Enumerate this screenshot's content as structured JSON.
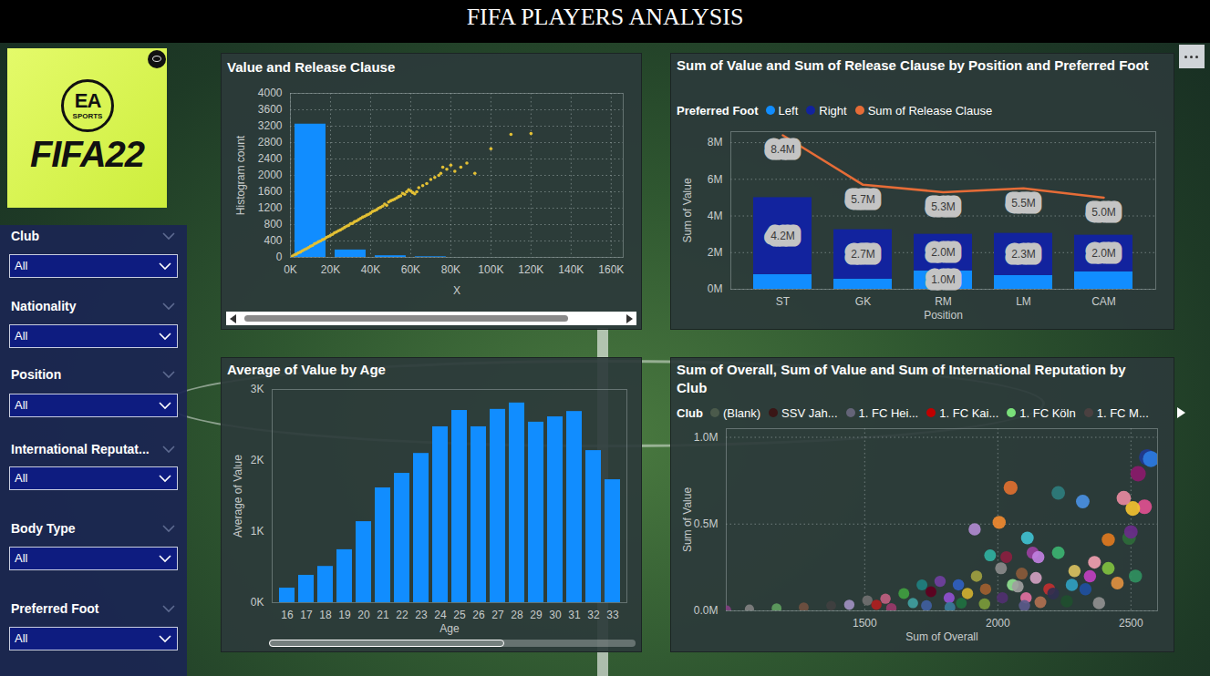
{
  "dashboard": {
    "title": "FIFA PLAYERS ANALYSIS",
    "logo": {
      "badge": "EA",
      "badge_sub": "SPORTS",
      "game": "FIFA22"
    },
    "slicers": [
      {
        "label": "Club",
        "value": "All"
      },
      {
        "label": "Nationality",
        "value": "All"
      },
      {
        "label": "Position",
        "value": "All"
      },
      {
        "label": "International Reputat...",
        "value": "All"
      },
      {
        "label": "Body Type",
        "value": "All"
      },
      {
        "label": "Preferred Foot",
        "value": "All"
      }
    ]
  },
  "chart_data": [
    {
      "type": "combo",
      "title": "Value and Release Clause",
      "x_label": "X",
      "y_label": "Histogram count",
      "xlim": [
        0,
        166000
      ],
      "xticks": [
        {
          "value": 0,
          "label": "0K"
        },
        {
          "value": 20000,
          "label": "20K"
        },
        {
          "value": 40000,
          "label": "40K"
        },
        {
          "value": 60000,
          "label": "60K"
        },
        {
          "value": 80000,
          "label": "80K"
        },
        {
          "value": 100000,
          "label": "100K"
        },
        {
          "value": 120000,
          "label": "120K"
        },
        {
          "value": 140000,
          "label": "140K"
        },
        {
          "value": 160000,
          "label": "160K"
        }
      ],
      "ylim": [
        0,
        4000
      ],
      "yticks": [
        0,
        400,
        800,
        1200,
        1600,
        2000,
        2400,
        2800,
        3200,
        3600,
        4000
      ],
      "grid": true,
      "series": [
        {
          "type": "bar",
          "color": "#118dff",
          "bins": [
            0,
            20000,
            40000,
            60000,
            80000
          ],
          "values": [
            3250,
            180,
            40,
            15
          ]
        },
        {
          "type": "scatter",
          "color": "#e3c034",
          "marker": "circle",
          "x": [
            1000,
            2000,
            3000,
            4000,
            5000,
            6000,
            7000,
            8000,
            9000,
            10000,
            11000,
            12000,
            13000,
            14000,
            15000,
            16000,
            17000,
            18000,
            19000,
            20000,
            21000,
            22000,
            23000,
            24000,
            25000,
            26000,
            27000,
            28000,
            29000,
            30000,
            31000,
            32000,
            33000,
            34000,
            35000,
            36000,
            37000,
            38000,
            39000,
            40000,
            41000,
            42000,
            43000,
            44000,
            45000,
            46000,
            47000,
            48000,
            49000,
            50000,
            51000,
            52000,
            53000,
            54000,
            55000,
            56000,
            57000,
            58000,
            59000,
            60000,
            61000,
            62000,
            63000,
            64000,
            66000,
            68000,
            70000,
            72000,
            74000,
            75000,
            76000,
            78000,
            80000,
            82000,
            85000,
            88000,
            92000,
            100000,
            110000,
            120000
          ],
          "values": [
            30,
            60,
            80,
            110,
            130,
            160,
            190,
            210,
            240,
            270,
            290,
            330,
            350,
            380,
            400,
            430,
            450,
            490,
            510,
            540,
            560,
            600,
            620,
            650,
            670,
            700,
            730,
            760,
            780,
            820,
            830,
            870,
            890,
            920,
            950,
            980,
            1000,
            1030,
            1050,
            1080,
            1120,
            1140,
            1160,
            1200,
            1220,
            1250,
            1300,
            1270,
            1350,
            1380,
            1400,
            1420,
            1450,
            1480,
            1500,
            1560,
            1540,
            1600,
            1650,
            1620,
            1580,
            1550,
            1600,
            1700,
            1750,
            1800,
            1900,
            1950,
            2000,
            2050,
            2200,
            2150,
            2250,
            2100,
            2200,
            2300,
            2050,
            2650,
            3000,
            3020
          ]
        }
      ]
    },
    {
      "type": "combo",
      "title": "Sum of Value and Sum of Release Clause by Position and Preferred Foot",
      "legend_title": "Preferred Foot",
      "legend": "top",
      "x_label": "Position",
      "y_label": "Sum of Value",
      "categories": [
        "ST",
        "GK",
        "RM",
        "LM",
        "CAM"
      ],
      "ylim": [
        0,
        8600000
      ],
      "yticks": [
        {
          "value": 0,
          "label": "0M"
        },
        {
          "value": 2000000,
          "label": "2M"
        },
        {
          "value": 4000000,
          "label": "4M"
        },
        {
          "value": 6000000,
          "label": "6M"
        },
        {
          "value": 8000000,
          "label": "8M"
        }
      ],
      "grid": true,
      "stacked": true,
      "data_labels": true,
      "series": [
        {
          "name": "Left",
          "type": "bar",
          "color": "#118dff",
          "values": [
            800000,
            550000,
            1000000,
            750000,
            950000
          ],
          "value_labels": [
            null,
            null,
            "1.0M",
            null,
            null
          ]
        },
        {
          "name": "Right",
          "type": "bar",
          "color": "#12239e",
          "values": [
            4200000,
            2700000,
            2000000,
            2300000,
            2000000
          ],
          "value_labels": [
            "4.2M",
            "2.7M",
            "2.0M",
            "2.3M",
            "2.0M"
          ]
        },
        {
          "name": "Sum of Release Clause",
          "type": "line",
          "color": "#e66c37",
          "values": [
            8400000,
            5700000,
            5300000,
            5500000,
            5000000
          ],
          "value_labels": [
            "8.4M",
            "5.7M",
            "5.3M",
            "5.5M",
            "5.0M"
          ]
        }
      ]
    },
    {
      "type": "bar",
      "title": "Average of Value by Age",
      "x_label": "Age",
      "y_label": "Average of Value",
      "categories": [
        "16",
        "17",
        "18",
        "19",
        "20",
        "21",
        "22",
        "23",
        "24",
        "25",
        "26",
        "27",
        "28",
        "29",
        "30",
        "31",
        "32",
        "33"
      ],
      "values": [
        205,
        385,
        510,
        745,
        1140,
        1615,
        1820,
        2100,
        2475,
        2705,
        2475,
        2720,
        2810,
        2540,
        2615,
        2690,
        2140,
        1730
      ],
      "color": "#118dff",
      "ylim": [
        0,
        3000
      ],
      "yticks": [
        {
          "value": 0,
          "label": "0K"
        },
        {
          "value": 1000,
          "label": "1K"
        },
        {
          "value": 2000,
          "label": "2K"
        },
        {
          "value": 3000,
          "label": "3K"
        }
      ],
      "grid": false
    },
    {
      "type": "scatter",
      "title": "Sum of Overall, Sum of Value and Sum of International Reputation by Club",
      "legend_title": "Club",
      "legend": "top",
      "legend_entries": [
        {
          "name": "(Blank)",
          "color": "#4b5a4b"
        },
        {
          "name": "SSV Jah...",
          "color": "#3a1616"
        },
        {
          "name": "1. FC Hei...",
          "color": "#646478"
        },
        {
          "name": "1. FC Kai...",
          "color": "#c00000"
        },
        {
          "name": "1. FC Köln",
          "color": "#7ae07a"
        },
        {
          "name": "1. FC M...",
          "color": "#4a4040"
        }
      ],
      "x_label": "Sum of Overall",
      "y_label": "Sum of Value",
      "xlim": [
        980,
        2600
      ],
      "xticks": [
        1500,
        2000,
        2500
      ],
      "ylim": [
        0,
        1050000
      ],
      "yticks": [
        {
          "value": 0,
          "label": "0.0M"
        },
        {
          "value": 500000,
          "label": "0.5M"
        },
        {
          "value": 1000000,
          "label": "1.0M"
        }
      ],
      "grid": true,
      "marker": "circle",
      "x": [
        2561,
        2575,
        2527,
        2048,
        2227,
        2319,
        2473,
        2551,
        2507,
        2005,
        1913,
        2111,
        1971,
        2032,
        2131,
        2152,
        2227,
        2415,
        2493,
        2500,
        2363,
        2288,
        2090,
        2012,
        1920,
        1852,
        1783,
        1715,
        1647,
        1578,
        1510,
        1442,
        1374,
        1271,
        1169,
        1067,
        981,
        2193,
        2278,
        2346,
        2415,
        2208,
        2106,
        1886,
        1817,
        2056,
        1954,
        1681,
        1544,
        2329,
        2449,
        2517,
        1749,
        2075,
        2143,
        2017,
        1863,
        1732,
        2380,
        2259,
        1950,
        2100,
        2160,
        1820,
        1600
      ],
      "values": [
        885000,
        875000,
        790000,
        710000,
        680000,
        630000,
        650000,
        600000,
        590000,
        510000,
        470000,
        420000,
        320000,
        310000,
        335000,
        310000,
        335000,
        410000,
        420000,
        455000,
        280000,
        230000,
        215000,
        245000,
        200000,
        150000,
        170000,
        150000,
        100000,
        70000,
        60000,
        35000,
        30000,
        20000,
        15000,
        10000,
        5000,
        125000,
        150000,
        200000,
        245000,
        100000,
        75000,
        100000,
        75000,
        150000,
        125000,
        45000,
        35000,
        125000,
        160000,
        200000,
        110000,
        140000,
        190000,
        75000,
        45000,
        30000,
        45000,
        55000,
        40000,
        30000,
        50000,
        20000,
        15000
      ],
      "sizes": [
        25,
        24,
        22,
        18,
        17,
        17,
        19,
        20,
        20,
        16,
        14,
        15,
        13,
        13,
        14,
        14,
        15,
        16,
        17,
        17,
        15,
        14,
        13,
        13,
        12,
        12,
        12,
        11,
        11,
        10,
        10,
        10,
        9,
        9,
        9,
        8,
        8,
        13,
        14,
        14,
        15,
        13,
        12,
        12,
        11,
        13,
        12,
        10,
        10,
        14,
        15,
        16,
        11,
        13,
        13,
        12,
        11,
        11,
        14,
        14,
        12,
        12,
        13,
        11,
        10
      ],
      "colors": [
        "#1f3a93",
        "#2d7be0",
        "#8b1a6b",
        "#e07030",
        "#2e7d7d",
        "#4a90e2",
        "#e88aa0",
        "#e05090",
        "#f2c230",
        "#f08a30",
        "#b08ad0",
        "#40c0d0",
        "#30b0a0",
        "#8a2040",
        "#9a40a0",
        "#c080e0",
        "#3cb371",
        "#e07a20",
        "#2e6b3a",
        "#6a2d8a",
        "#f0a0b0",
        "#d8c060",
        "#8a5a3a",
        "#8a8a8a",
        "#a0a040",
        "#3060c0",
        "#7040a0",
        "#208080",
        "#40a040",
        "#c06080",
        "#707070",
        "#a090c0",
        "#404040",
        "#705040",
        "#60a060",
        "#808080",
        "#804080",
        "#c03030",
        "#30a0c0",
        "#c040c0",
        "#80c040",
        "#303050",
        "#e070a0",
        "#d0b030",
        "#9050d0",
        "#90e090",
        "#a06030",
        "#40a0a0",
        "#b02020",
        "#2050a0",
        "#e09040",
        "#309060",
        "#600020",
        "#a0a0a0",
        "#d0a0c0",
        "#503070",
        "#207040",
        "#4060a0",
        "#909090",
        "#1f4f2f",
        "#7a9a3a",
        "#5a5a8a",
        "#b07050",
        "#3a7a9a",
        "#9a3a6a"
      ]
    }
  ]
}
